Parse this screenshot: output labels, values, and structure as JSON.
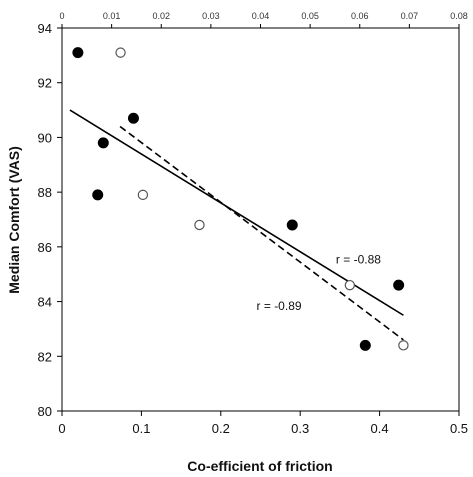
{
  "chart_data": {
    "type": "scatter",
    "title": "",
    "xlabel": "Co-efficient of friction",
    "ylabel": "Median Comfort (VAS)",
    "xlim": [
      0,
      0.5
    ],
    "ylim": [
      80,
      94
    ],
    "x_ticks": [
      "0",
      "0.1",
      "0.2",
      "0.3",
      "0.4",
      "0.5"
    ],
    "y_ticks": [
      "80",
      "82",
      "84",
      "86",
      "88",
      "90",
      "92",
      "94"
    ],
    "top_axis": {
      "xlim": [
        0,
        0.08
      ],
      "ticks": [
        "0",
        "0.01",
        "0.02",
        "0.03",
        "0.04",
        "0.05",
        "0.06",
        "0.07",
        "0.08"
      ]
    },
    "grid": false,
    "series": [
      {
        "marker": "filled-circle",
        "axis": "bottom",
        "color": "#000000",
        "points": [
          {
            "x": 0.02,
            "y": 93.1
          },
          {
            "x": 0.045,
            "y": 87.9
          },
          {
            "x": 0.052,
            "y": 89.8
          },
          {
            "x": 0.09,
            "y": 90.7
          },
          {
            "x": 0.29,
            "y": 86.8
          },
          {
            "x": 0.382,
            "y": 82.4
          },
          {
            "x": 0.424,
            "y": 84.6
          }
        ],
        "fit": {
          "style": "solid",
          "from": [
            0.01,
            91.0
          ],
          "to": [
            0.43,
            83.5
          ]
        }
      },
      {
        "marker": "open-circle",
        "axis": "top",
        "color": "#000000",
        "points": [
          {
            "x": 0.0118,
            "y": 93.1
          },
          {
            "x": 0.0163,
            "y": 87.9
          },
          {
            "x": 0.0277,
            "y": 86.8
          },
          {
            "x": 0.058,
            "y": 84.6
          },
          {
            "x": 0.0688,
            "y": 82.4
          }
        ],
        "fit": {
          "style": "dashed",
          "from": [
            0.0117,
            90.4
          ],
          "to": [
            0.0688,
            82.6
          ]
        }
      }
    ],
    "annotations": [
      {
        "text": "r = -0.88",
        "x": 0.345,
        "y": 85.4
      },
      {
        "text": "r = -0.89",
        "x": 0.245,
        "y": 83.7
      }
    ]
  }
}
